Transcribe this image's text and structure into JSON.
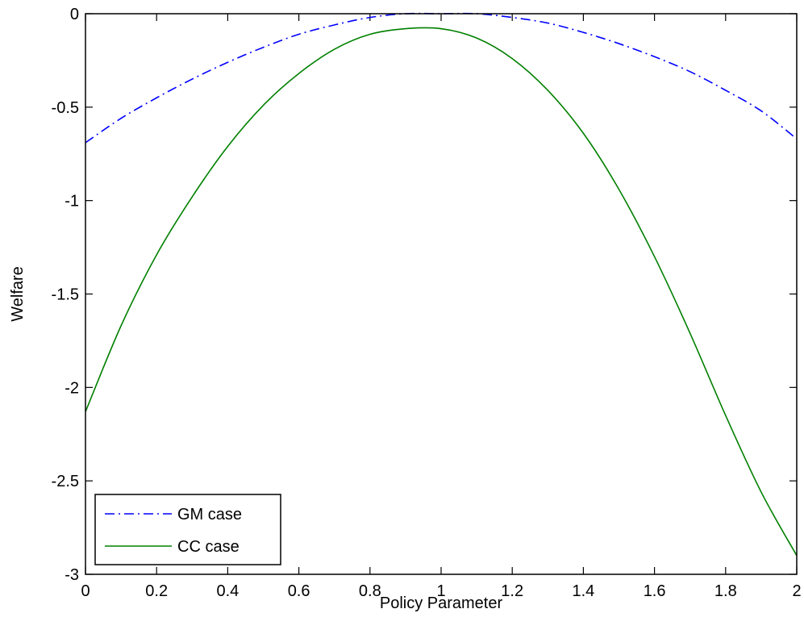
{
  "chart_data": {
    "type": "line",
    "title": "",
    "xlabel": "Policy Parameter",
    "ylabel": "Welfare",
    "xlim": [
      0,
      2
    ],
    "ylim": [
      -3,
      0
    ],
    "xticks": [
      0,
      0.2,
      0.4,
      0.6,
      0.8,
      1,
      1.2,
      1.4,
      1.6,
      1.8,
      2
    ],
    "xtick_labels": [
      "0",
      "0.2",
      "0.4",
      "0.6",
      "0.8",
      "1",
      "1.2",
      "1.4",
      "1.6",
      "1.8",
      "2"
    ],
    "yticks": [
      0,
      -0.5,
      -1,
      -1.5,
      -2,
      -2.5,
      -3
    ],
    "ytick_labels": [
      "0",
      "-0.5",
      "-1",
      "-1.5",
      "-2",
      "-2.5",
      "-3"
    ],
    "grid": false,
    "legend_position": "bottom-left",
    "x": [
      0,
      0.1,
      0.2,
      0.3,
      0.4,
      0.5,
      0.6,
      0.7,
      0.8,
      0.9,
      1.0,
      1.1,
      1.2,
      1.3,
      1.4,
      1.5,
      1.6,
      1.7,
      1.8,
      1.9,
      2.0
    ],
    "series": [
      {
        "name": "GM case",
        "color": "#0000ff",
        "line_style": "dash-dot",
        "values": [
          -0.69,
          -0.56,
          -0.45,
          -0.35,
          -0.26,
          -0.18,
          -0.11,
          -0.06,
          -0.02,
          0.0,
          0.0,
          0.0,
          -0.02,
          -0.05,
          -0.1,
          -0.16,
          -0.23,
          -0.31,
          -0.41,
          -0.52,
          -0.67
        ]
      },
      {
        "name": "CC case",
        "color": "#008000",
        "line_style": "solid",
        "values": [
          -2.13,
          -1.67,
          -1.29,
          -0.98,
          -0.71,
          -0.49,
          -0.32,
          -0.19,
          -0.11,
          -0.08,
          -0.08,
          -0.13,
          -0.24,
          -0.41,
          -0.64,
          -0.94,
          -1.3,
          -1.71,
          -2.15,
          -2.56,
          -2.9
        ]
      }
    ]
  }
}
